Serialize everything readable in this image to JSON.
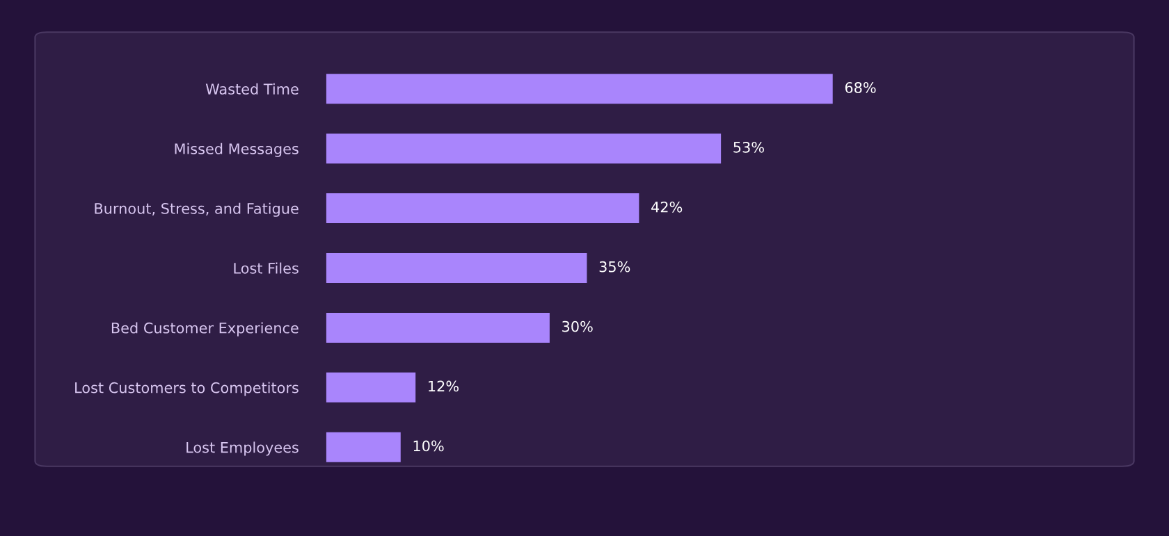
{
  "chart_data": {
    "type": "bar",
    "orientation": "horizontal",
    "categories": [
      "Wasted Time",
      "Missed Messages",
      "Burnout, Stress, and Fatigue",
      "Lost Files",
      "Bed Customer Experience",
      "Lost Customers to Competitors",
      "Lost Employees"
    ],
    "values": [
      68,
      53,
      42,
      35,
      30,
      12,
      10
    ],
    "value_labels": [
      "68%",
      "53%",
      "42%",
      "35%",
      "30%",
      "12%",
      "10%"
    ],
    "color": "#a985fc"
  }
}
